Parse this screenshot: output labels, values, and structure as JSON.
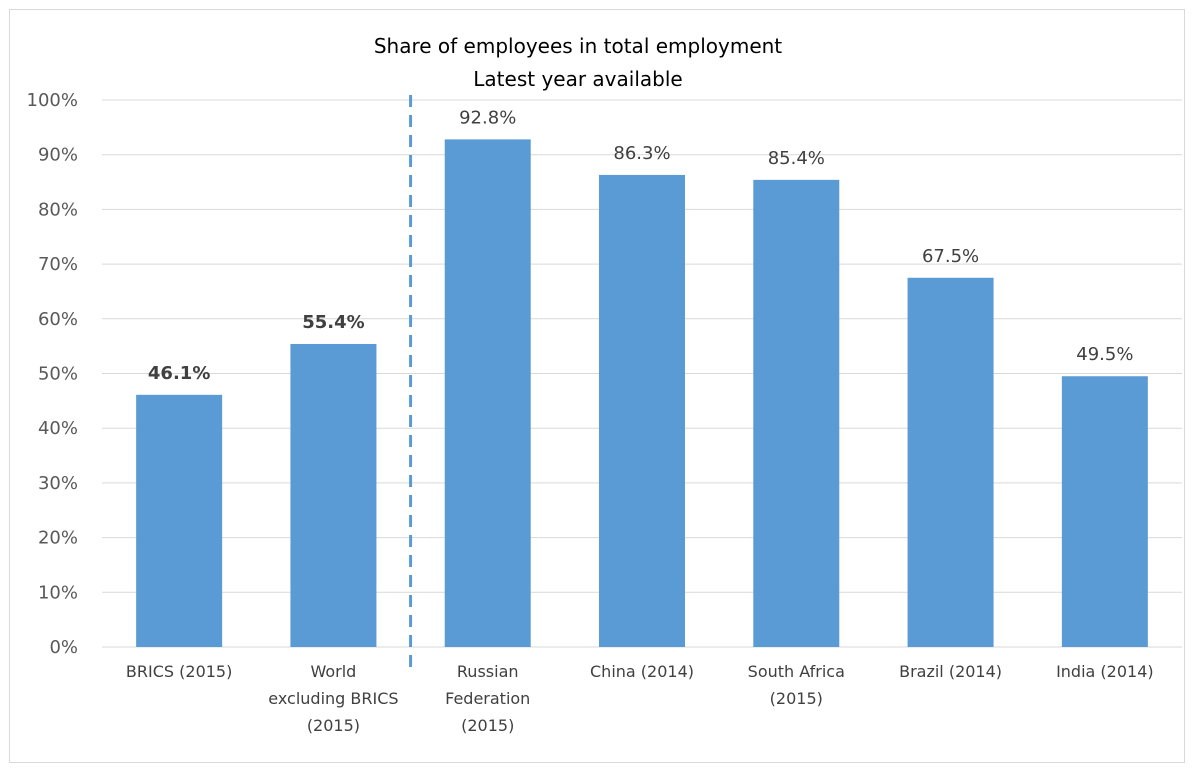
{
  "chart_data": {
    "type": "bar",
    "title": "Share of employees in total employment",
    "subtitle": "Latest year available",
    "xlabel": "",
    "ylabel": "",
    "ylim": [
      0,
      100
    ],
    "y_tick_step": 10,
    "y_tick_suffix": "%",
    "grid": true,
    "legend": "none",
    "categories": [
      [
        "BRICS (2015)"
      ],
      [
        "World",
        "excluding BRICS",
        "(2015)"
      ],
      [
        "Russian",
        "Federation",
        "(2015)"
      ],
      [
        "China (2014)"
      ],
      [
        "South Africa",
        "(2015)"
      ],
      [
        "Brazil (2014)"
      ],
      [
        "India (2014)"
      ]
    ],
    "values": [
      46.1,
      55.4,
      92.8,
      86.3,
      85.4,
      67.5,
      49.5
    ],
    "data_labels": [
      "46.1%",
      "55.4%",
      "92.8%",
      "86.3%",
      "85.4%",
      "67.5%",
      "49.5%"
    ],
    "bold_labels": [
      true,
      true,
      false,
      false,
      false,
      false,
      false
    ],
    "divider_after_category": 2,
    "colors": {
      "bar": "#5b9bd5",
      "grid": "#d9d9d9",
      "divider": "#5b9bd5"
    }
  }
}
